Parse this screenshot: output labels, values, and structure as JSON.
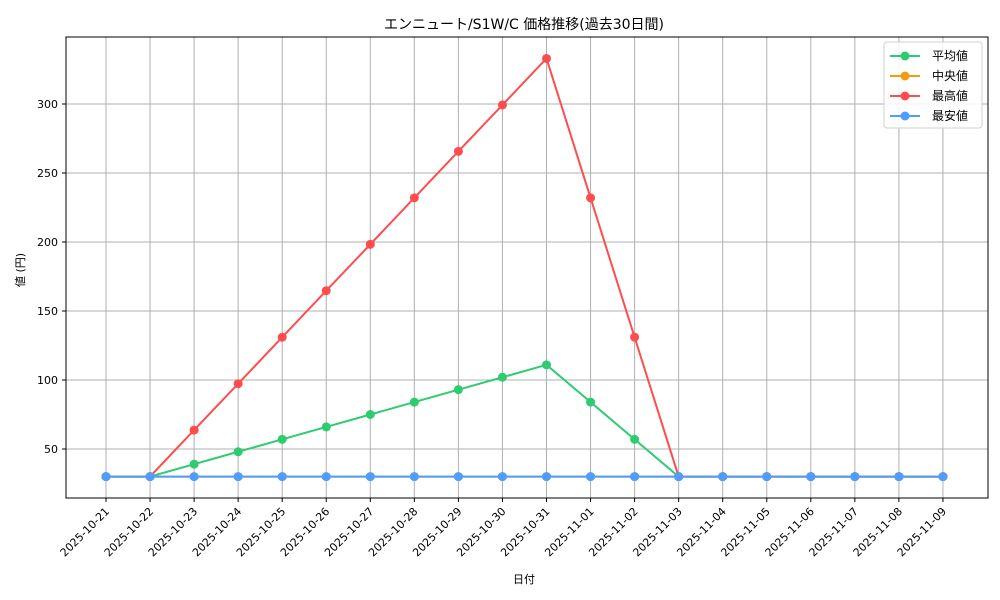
{
  "chart_data": {
    "type": "line",
    "title": "エンニュート/S1W/C 価格推移(過去30日間)",
    "xlabel": "日付",
    "ylabel": "値 (円)",
    "ylim": [
      14,
      347
    ],
    "yticks": [
      50,
      100,
      150,
      200,
      250,
      300
    ],
    "grid": true,
    "legend_position": "upper right",
    "categories": [
      "2025-10-21",
      "2025-10-22",
      "2025-10-23",
      "2025-10-24",
      "2025-10-25",
      "2025-10-26",
      "2025-10-27",
      "2025-10-28",
      "2025-10-29",
      "2025-10-30",
      "2025-10-31",
      "2025-11-01",
      "2025-11-02",
      "2025-11-03",
      "2025-11-04",
      "2025-11-05",
      "2025-11-06",
      "2025-11-07",
      "2025-11-08",
      "2025-11-09"
    ],
    "series": [
      {
        "name": "平均値",
        "color": "#2ecc71",
        "values": [
          30,
          30,
          39,
          48,
          57,
          66,
          75,
          84,
          93,
          102,
          111,
          84,
          57,
          30,
          30,
          30,
          30,
          30,
          30,
          30
        ]
      },
      {
        "name": "中央値",
        "color": "#f39c12",
        "values": [
          30,
          30,
          30,
          30,
          30,
          30,
          30,
          30,
          30,
          30,
          30,
          30,
          30,
          30,
          30,
          30,
          30,
          30,
          30,
          30
        ]
      },
      {
        "name": "最高値",
        "color": "#ff4d4d",
        "values": [
          30,
          30,
          63.7,
          97.3,
          131,
          164.7,
          198.3,
          232,
          265.7,
          299.3,
          333,
          232,
          131,
          30,
          30,
          30,
          30,
          30,
          30,
          30
        ]
      },
      {
        "name": "最安値",
        "color": "#4d9eff",
        "values": [
          30,
          30,
          30,
          30,
          30,
          30,
          30,
          30,
          30,
          30,
          30,
          30,
          30,
          30,
          30,
          30,
          30,
          30,
          30,
          30
        ]
      }
    ]
  }
}
